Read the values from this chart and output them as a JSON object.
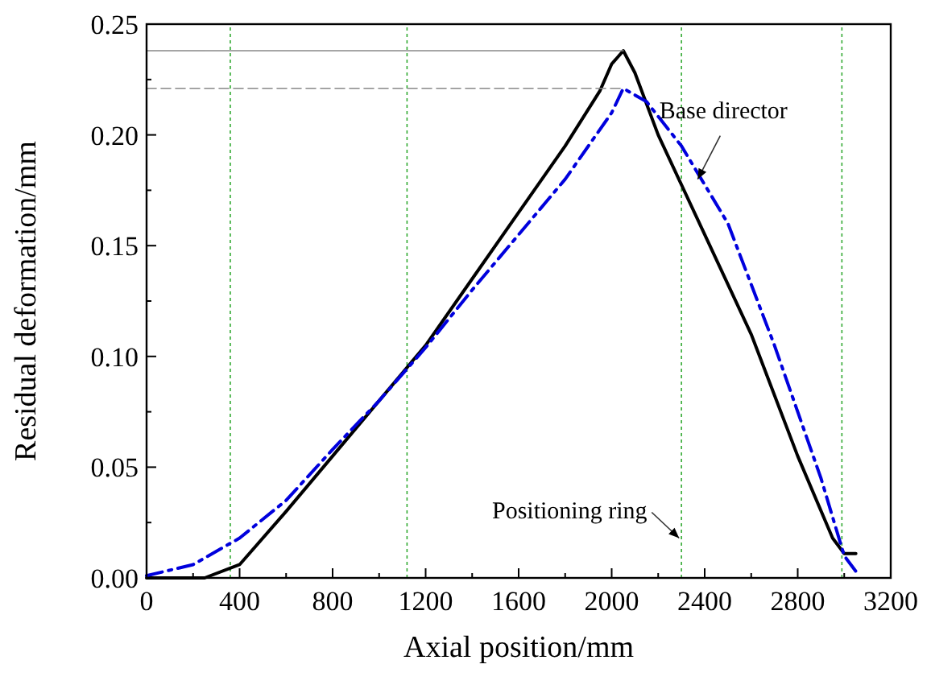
{
  "chart_data": {
    "type": "line",
    "xlabel": "Axial position/mm",
    "ylabel": "Residual deformation/mm",
    "xlim": [
      0,
      3200
    ],
    "xticks": [
      0,
      400,
      800,
      1200,
      1600,
      2000,
      2400,
      2800,
      3200
    ],
    "ylim": [
      0,
      0.25
    ],
    "yticks": [
      {
        "value": 0,
        "label": "0.00"
      },
      {
        "value": 0.05,
        "label": "0.05"
      },
      {
        "value": 0.1,
        "label": "0.10"
      },
      {
        "value": 0.15,
        "label": "0.15"
      },
      {
        "value": 0.2,
        "label": "0.20"
      },
      {
        "value": 0.25,
        "label": "0.25"
      }
    ],
    "grid": false,
    "marker": "none",
    "series": [
      {
        "color": "#000000",
        "line_style": "solid",
        "x": [
          0,
          250,
          400,
          600,
          800,
          1000,
          1200,
          1400,
          1600,
          1800,
          1950,
          2000,
          2050,
          2100,
          2200,
          2400,
          2600,
          2800,
          2950,
          3000,
          3050
        ],
        "values": [
          0,
          0,
          0.006,
          0.03,
          0.055,
          0.08,
          0.105,
          0.135,
          0.165,
          0.195,
          0.22,
          0.232,
          0.238,
          0.228,
          0.2,
          0.155,
          0.11,
          0.055,
          0.018,
          0.011,
          0.011
        ]
      },
      {
        "color": "#0000dd",
        "line_style": "dashdot",
        "x": [
          0,
          200,
          400,
          600,
          800,
          1000,
          1200,
          1400,
          1600,
          1800,
          2000,
          2050,
          2150,
          2300,
          2500,
          2700,
          2900,
          3000,
          3050
        ],
        "values": [
          0.001,
          0.006,
          0.018,
          0.035,
          0.058,
          0.08,
          0.104,
          0.13,
          0.155,
          0.18,
          0.21,
          0.221,
          0.215,
          0.195,
          0.16,
          0.105,
          0.045,
          0.01,
          0.003
        ]
      },
      {
        "color": "#888888",
        "line_style": "solid",
        "x": [
          0,
          2050
        ],
        "values": [
          0.238,
          0.238
        ]
      },
      {
        "color": "#888888",
        "line_style": "dashed",
        "x": [
          0,
          2050
        ],
        "values": [
          0.221,
          0.221
        ]
      }
    ],
    "ref_lines": [
      {
        "axis": "x",
        "value": 360,
        "color": "#33aa33",
        "line_style": "dotted"
      },
      {
        "axis": "x",
        "value": 1120,
        "color": "#33aa33",
        "line_style": "dotted"
      },
      {
        "axis": "x",
        "value": 2300,
        "color": "#33aa33",
        "line_style": "dotted"
      },
      {
        "axis": "x",
        "value": 2990,
        "color": "#33aa33",
        "line_style": "dotted"
      }
    ],
    "annotations": [
      {
        "text": "Base director",
        "x": 2370,
        "y": 0.18
      },
      {
        "text": "Positioning ring",
        "x": 2290,
        "y": 0.018
      }
    ]
  }
}
